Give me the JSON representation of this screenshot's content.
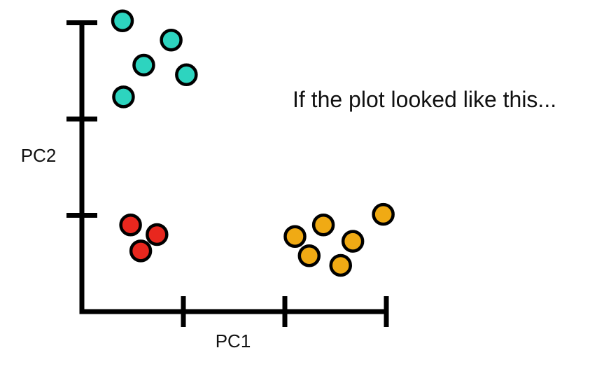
{
  "caption": "If the plot looked like this...",
  "chart_data": {
    "type": "scatter",
    "xlabel": "PC1",
    "ylabel": "PC2",
    "xlim": [
      0,
      3
    ],
    "ylim": [
      0,
      3
    ],
    "x_ticks": [
      1,
      2,
      3
    ],
    "y_ticks": [
      1,
      2,
      3
    ],
    "tick_labels_shown": false,
    "grid": false,
    "legend": "none",
    "series": [
      {
        "color": "#2dd4bf",
        "points": [
          {
            "x": 0.4,
            "y": 3.02
          },
          {
            "x": 0.88,
            "y": 2.82
          },
          {
            "x": 0.61,
            "y": 2.56
          },
          {
            "x": 1.03,
            "y": 2.46
          },
          {
            "x": 0.41,
            "y": 2.23
          }
        ]
      },
      {
        "color": "#e8271e",
        "points": [
          {
            "x": 0.48,
            "y": 0.9
          },
          {
            "x": 0.74,
            "y": 0.8
          },
          {
            "x": 0.58,
            "y": 0.63
          }
        ]
      },
      {
        "color": "#f0aa14",
        "points": [
          {
            "x": 2.97,
            "y": 1.01
          },
          {
            "x": 2.38,
            "y": 0.9
          },
          {
            "x": 2.1,
            "y": 0.78
          },
          {
            "x": 2.67,
            "y": 0.73
          },
          {
            "x": 2.24,
            "y": 0.58
          },
          {
            "x": 2.55,
            "y": 0.48
          }
        ]
      }
    ]
  }
}
